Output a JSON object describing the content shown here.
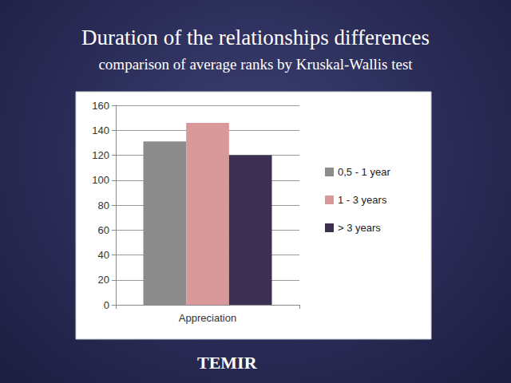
{
  "chart_data": {
    "type": "bar",
    "title": "Duration of the relationships differences",
    "subtitle": "comparison of average ranks by Kruskal-Wallis test",
    "annotation": "TEMIR",
    "categories": [
      "Appreciation"
    ],
    "series": [
      {
        "name": "0,5 - 1 year",
        "color": "#8c8c8c",
        "values": [
          131
        ]
      },
      {
        "name": "1 - 3 years",
        "color": "#d9999b",
        "values": [
          146
        ]
      },
      {
        "name": "> 3 years",
        "color": "#3b2f52",
        "values": [
          120
        ]
      }
    ],
    "ylim": [
      0,
      160
    ],
    "yticks": [
      0,
      20,
      40,
      60,
      80,
      100,
      120,
      140,
      160
    ],
    "grid": true,
    "legend": "right"
  }
}
